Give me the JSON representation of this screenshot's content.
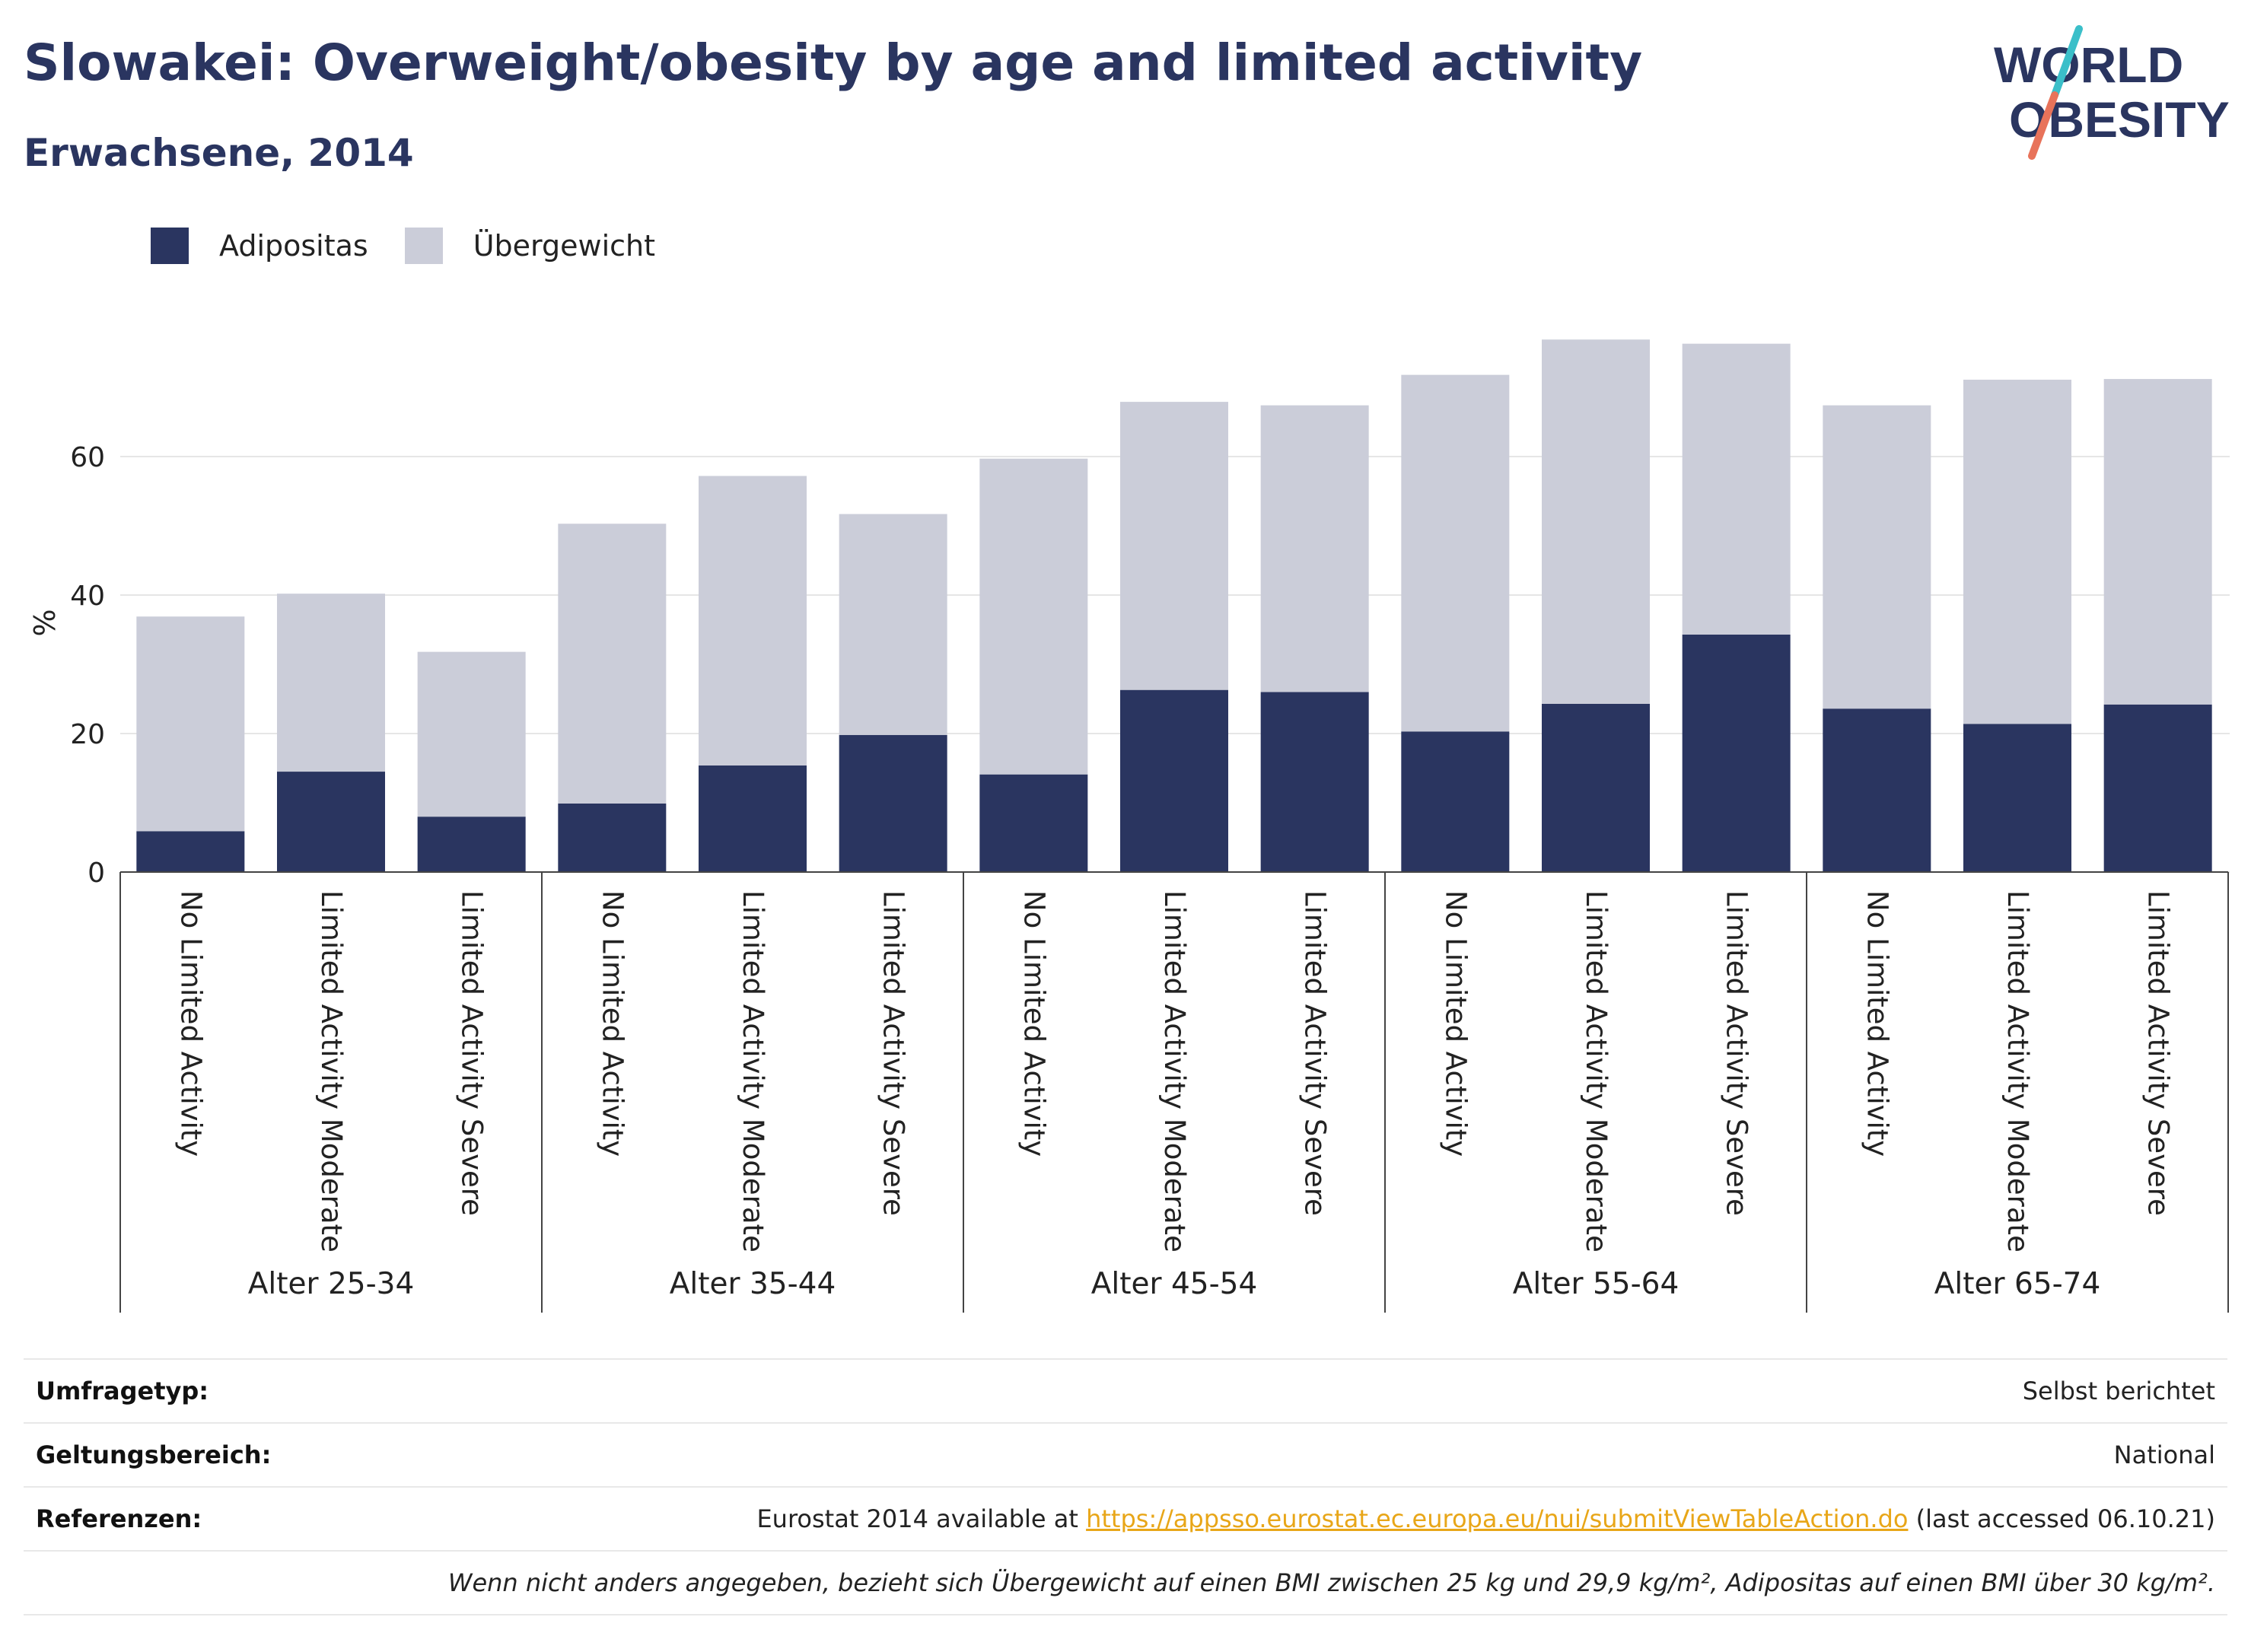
{
  "header": {
    "title": "Slowakei: Overweight/obesity by age and limited activity",
    "subtitle": "Erwachsene, 2014"
  },
  "logo": {
    "line1": "WORLD",
    "line2": "OBESITY",
    "colors": {
      "text": "#2a3560",
      "slash_top": "#3bbfc9",
      "slash_bottom": "#e8735a"
    }
  },
  "legend": [
    {
      "label": "Adipositas",
      "color": "#2a3560"
    },
    {
      "label": "Übergewicht",
      "color": "#cbcdd9"
    }
  ],
  "chart_data": {
    "type": "bar",
    "stacked": true,
    "ylabel": "%",
    "ylim": [
      0,
      80
    ],
    "yticks": [
      0,
      20,
      40,
      60
    ],
    "grid": true,
    "legend_position": "top-left",
    "groups": [
      {
        "label": "Alter 25-34",
        "categories": [
          "No Limited Activity",
          "Limited Activity Moderate",
          "Limited Activity Severe"
        ]
      },
      {
        "label": "Alter 35-44",
        "categories": [
          "No Limited Activity",
          "Limited Activity Moderate",
          "Limited Activity Severe"
        ]
      },
      {
        "label": "Alter 45-54",
        "categories": [
          "No Limited Activity",
          "Limited Activity Moderate",
          "Limited Activity Severe"
        ]
      },
      {
        "label": "Alter 55-64",
        "categories": [
          "No Limited Activity",
          "Limited Activity Moderate",
          "Limited Activity Severe"
        ]
      },
      {
        "label": "Alter 65-74",
        "categories": [
          "No Limited Activity",
          "Limited Activity Moderate",
          "Limited Activity Severe"
        ]
      }
    ],
    "series": [
      {
        "name": "Adipositas",
        "color": "#2a3560",
        "values": [
          5.9,
          14.5,
          8.0,
          9.9,
          15.4,
          19.8,
          14.1,
          26.3,
          26.0,
          20.3,
          24.3,
          34.3,
          23.6,
          21.4,
          24.2
        ]
      },
      {
        "name": "Übergewicht",
        "color": "#cbcdd9",
        "values": [
          31.0,
          25.7,
          23.8,
          40.4,
          41.8,
          31.9,
          45.6,
          41.6,
          41.4,
          51.5,
          52.6,
          42.0,
          43.8,
          49.7,
          47.0
        ]
      }
    ]
  },
  "info": {
    "survey_label": "Umfragetyp:",
    "survey_value": "Selbst berichtet",
    "scope_label": "Geltungsbereich:",
    "scope_value": "National",
    "ref_label": "Referenzen:",
    "ref_prefix": "Eurostat 2014 available at ",
    "ref_link": "https://appsso.eurostat.ec.europa.eu/nui/submitViewTableAction.do",
    "ref_suffix": " (last accessed 06.10.21)",
    "note": "Wenn nicht anders angegeben, bezieht sich Übergewicht auf einen BMI zwischen 25 kg und 29,9 kg/m², Adipositas auf einen BMI über 30 kg/m²."
  }
}
